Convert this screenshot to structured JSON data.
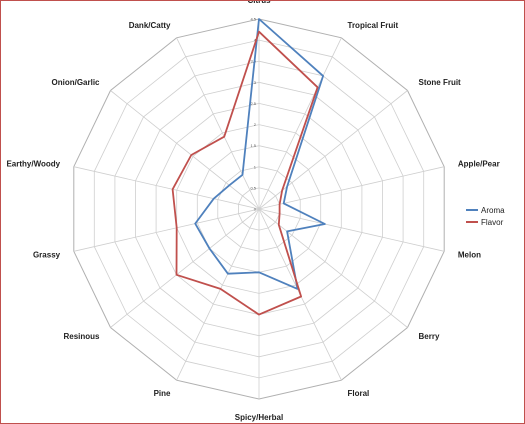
{
  "chart_data": {
    "type": "radar",
    "categories": [
      "Citrus",
      "Tropical Fruit",
      "Stone Fruit",
      "Apple/Pear",
      "Melon",
      "Berry",
      "Floral",
      "Spicy/Herbal",
      "Pine",
      "Resinous",
      "Grassy",
      "Earthy/Woody",
      "Onion/Garlic",
      "Dank/Catty"
    ],
    "rmax": 4.5,
    "tick_step": 0.5,
    "tick_labels": [
      "0",
      "0.5",
      "1",
      "1.5",
      "2",
      "2.5",
      "3",
      "3.5",
      "4",
      "4.5"
    ],
    "grid": true,
    "legend_position": "right",
    "series": [
      {
        "name": "Aroma",
        "color": "#4f81bd",
        "values": [
          4.5,
          3.5,
          0.85,
          0.6,
          1.6,
          0.85,
          2.1,
          1.5,
          1.7,
          1.5,
          1.55,
          1.1,
          0.9,
          0.9
        ]
      },
      {
        "name": "Flavor",
        "color": "#c0504d",
        "values": [
          4.2,
          3.2,
          0.7,
          0.5,
          0.5,
          0.6,
          2.3,
          2.5,
          2.1,
          2.5,
          2.0,
          2.1,
          2.05,
          1.9
        ]
      }
    ]
  }
}
